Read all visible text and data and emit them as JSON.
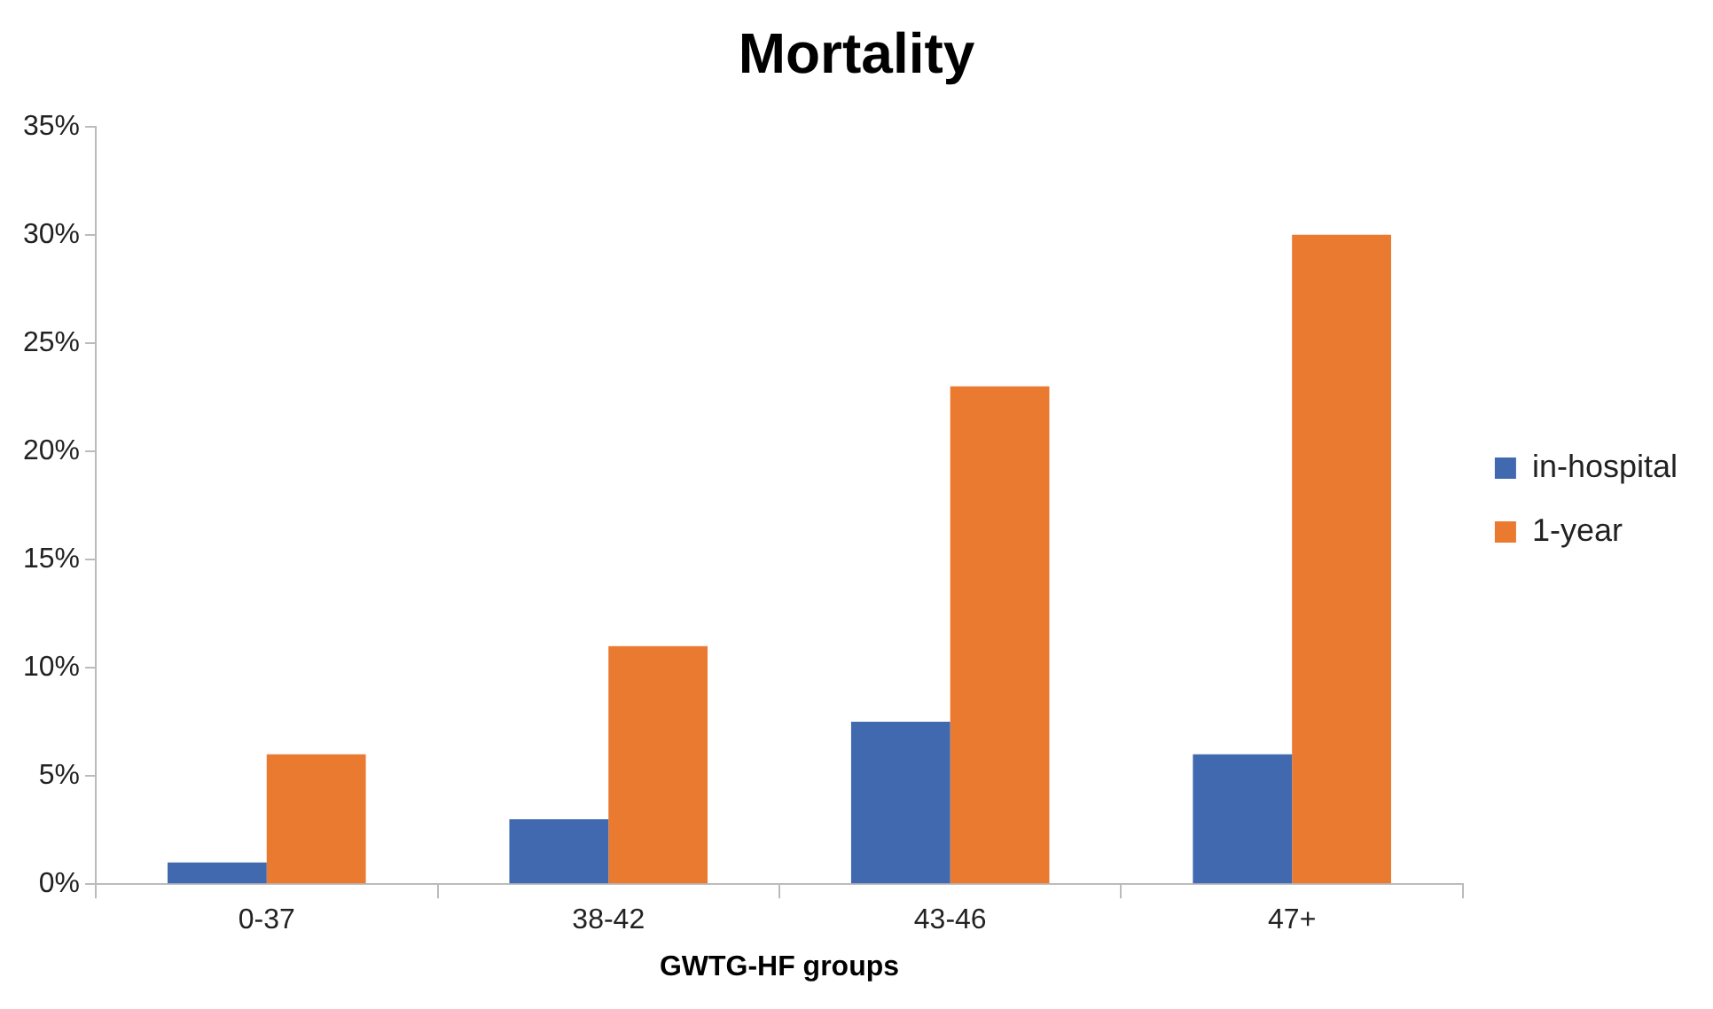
{
  "chart_data": {
    "type": "bar",
    "title": "Mortality",
    "xlabel": "GWTG-HF groups",
    "categories": [
      "0-37",
      "38-42",
      "43-46",
      "47+"
    ],
    "series": [
      {
        "name": "in-hospital",
        "color": "#4169b0",
        "values": [
          1,
          3,
          7.5,
          6
        ]
      },
      {
        "name": "1-year",
        "color": "#e97a30",
        "values": [
          6,
          11,
          23,
          30
        ]
      }
    ],
    "ylim": [
      0,
      35
    ],
    "yticks": [
      {
        "value": 0,
        "label": "0%"
      },
      {
        "value": 5,
        "label": "5%"
      },
      {
        "value": 10,
        "label": "10%"
      },
      {
        "value": 15,
        "label": "15%"
      },
      {
        "value": 20,
        "label": "20%"
      },
      {
        "value": 25,
        "label": "25%"
      },
      {
        "value": 30,
        "label": "30%"
      },
      {
        "value": 35,
        "label": "35%"
      }
    ],
    "grid": false,
    "legend": "right"
  }
}
